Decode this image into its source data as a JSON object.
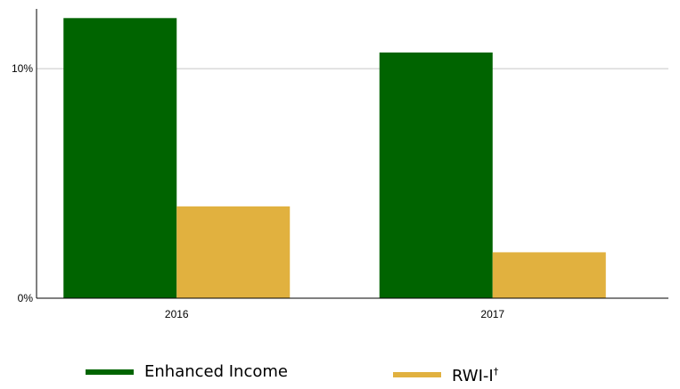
{
  "chart_data": {
    "type": "bar",
    "categories": [
      "2016",
      "2017"
    ],
    "series": [
      {
        "name": "Enhanced Income",
        "values": [
          12.2,
          10.7
        ],
        "color": "#006400"
      },
      {
        "name": "RWI-I",
        "name_suffix": "†",
        "values": [
          4.0,
          2.0
        ],
        "color": "#E1B13F"
      }
    ],
    "y_ticks": [
      {
        "value": 0,
        "label": "0%"
      },
      {
        "value": 10,
        "label": "10%"
      }
    ],
    "ylim": [
      0,
      12.6
    ],
    "grid": "horizontal at 10%",
    "legend_position": "bottom",
    "title": "",
    "xlabel": "",
    "ylabel": ""
  }
}
